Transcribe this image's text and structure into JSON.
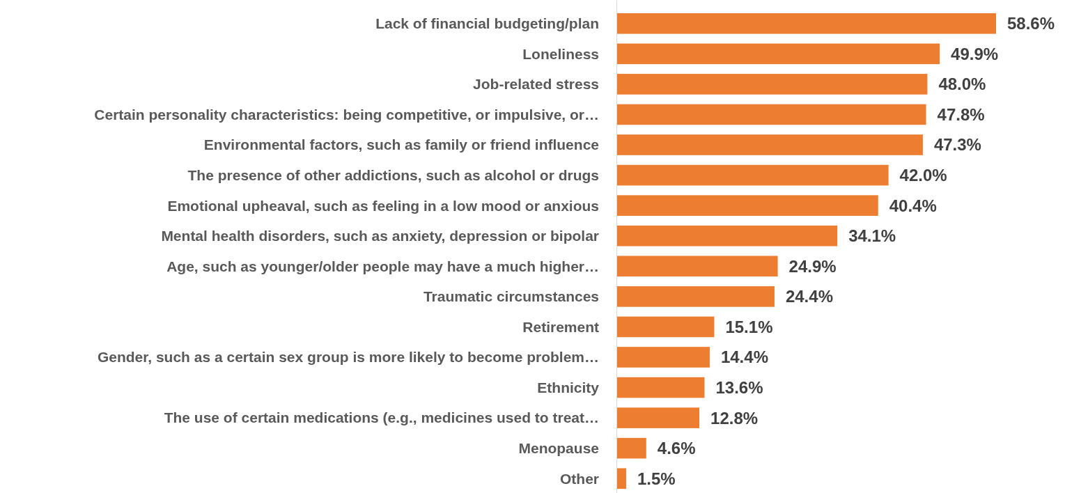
{
  "chart_data": {
    "type": "bar",
    "orientation": "horizontal",
    "categories": [
      "Lack of financial budgeting/plan",
      "Loneliness",
      "Job-related stress",
      "Certain personality characteristics: being competitive, or impulsive, or…",
      "Environmental factors, such as family or friend influence",
      "The presence of other addictions, such as alcohol or drugs",
      "Emotional upheaval, such as feeling in a low mood or anxious",
      "Mental health disorders, such as anxiety, depression or bipolar",
      "Age, such as younger/older people may have a much higher…",
      "Traumatic circumstances",
      "Retirement",
      "Gender, such as a certain sex group is more likely to become problem…",
      "Ethnicity",
      "The use of certain medications (e.g., medicines used to treat…",
      "Menopause",
      "Other"
    ],
    "values": [
      58.6,
      49.9,
      48.0,
      47.8,
      47.3,
      42.0,
      40.4,
      34.1,
      24.9,
      24.4,
      15.1,
      14.4,
      13.6,
      12.8,
      4.6,
      1.5
    ],
    "value_labels": [
      "58.6%",
      "49.9%",
      "48.0%",
      "47.8%",
      "47.3%",
      "42.0%",
      "40.4%",
      "34.1%",
      "24.9%",
      "24.4%",
      "15.1%",
      "14.4%",
      "13.6%",
      "12.8%",
      "4.6%",
      "1.5%"
    ],
    "color": "#ed7d31",
    "tick_labels": "y"
  }
}
